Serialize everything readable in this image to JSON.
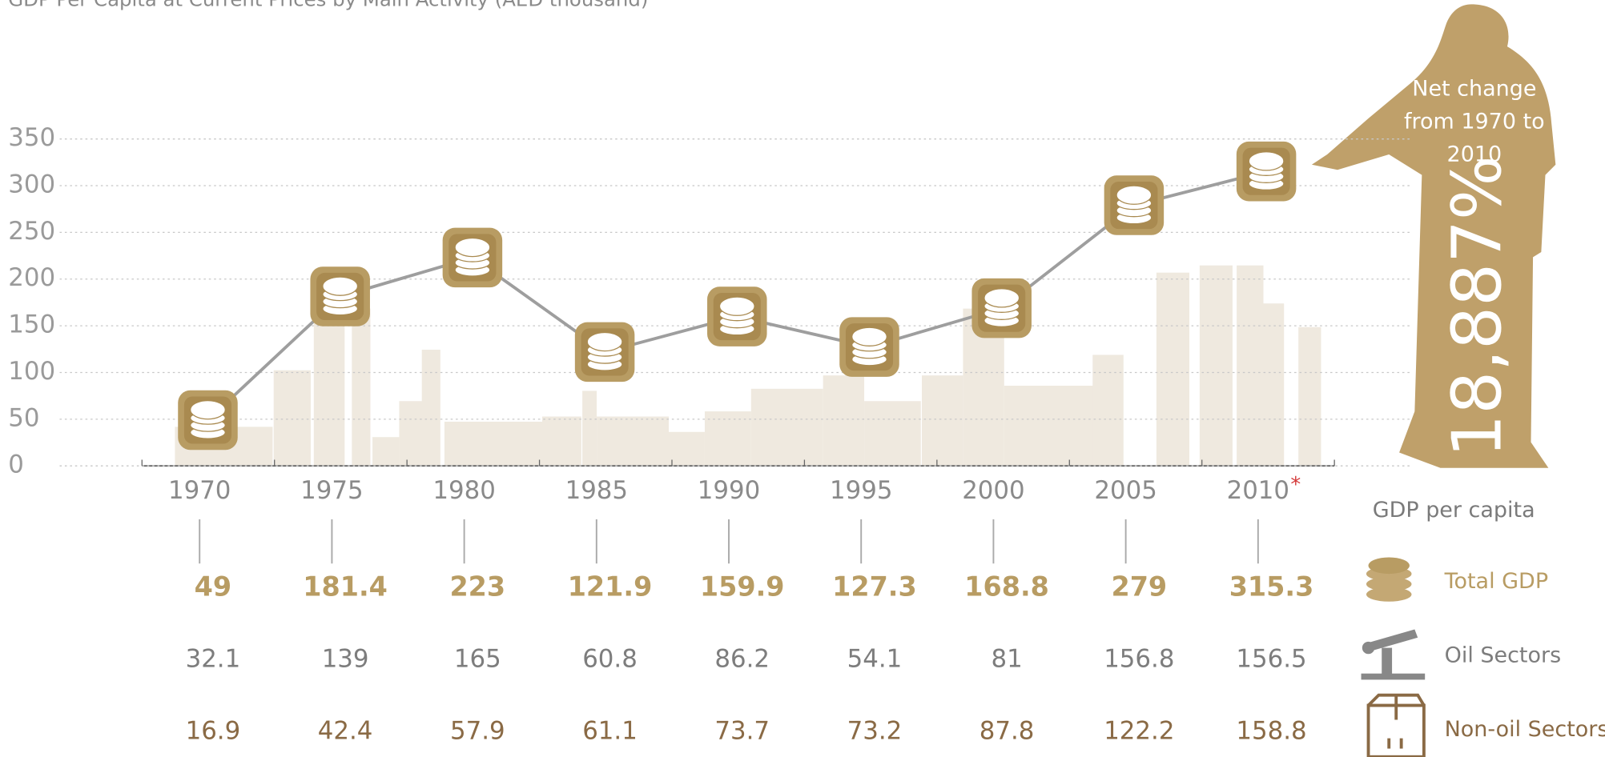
{
  "chart_data": {
    "type": "line",
    "title": "GDP Per Capita at Current Prices by Main Activity (AED thousand)",
    "categories": [
      "1970",
      "1975",
      "1980",
      "1985",
      "1990",
      "1995",
      "2000",
      "2005",
      "2010"
    ],
    "category_note": "*",
    "ylim": [
      0,
      350
    ],
    "yticks": [
      0,
      50,
      100,
      150,
      200,
      250,
      300,
      350
    ],
    "grid": true,
    "legend_title": "GDP per capita",
    "series": [
      {
        "name": "Total GDP",
        "color": "#b89c63",
        "values": [
          49,
          181.4,
          223,
          121.9,
          159.9,
          127.3,
          168.8,
          279,
          315.3
        ]
      },
      {
        "name": "Oil Sectors",
        "color": "#7d7d7d",
        "values": [
          32.1,
          139,
          165,
          60.8,
          86.2,
          54.1,
          81,
          156.8,
          156.5
        ]
      },
      {
        "name": "Non-oil Sectors",
        "color": "#8a6a45",
        "values": [
          16.9,
          42.4,
          57.9,
          61.1,
          73.7,
          73.2,
          87.8,
          122.2,
          158.8
        ]
      }
    ],
    "annotation": {
      "lines": [
        "Net change",
        "from 1970 to",
        "2010"
      ],
      "value": "18,887%"
    }
  }
}
